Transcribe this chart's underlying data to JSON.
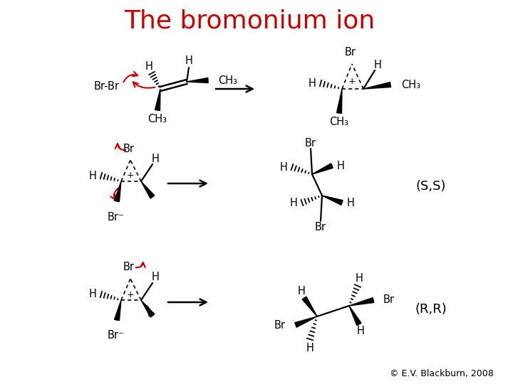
{
  "title": "The bromonium ion",
  "title_color": "#cc0000",
  "title_fontsize": 26,
  "copyright": "© E.V. Blackburn, 2008",
  "background": "#ffffff",
  "text_color": "#000000",
  "red": "#cc0000",
  "ss_label": "(S,S)",
  "rr_label": "(R,R)"
}
